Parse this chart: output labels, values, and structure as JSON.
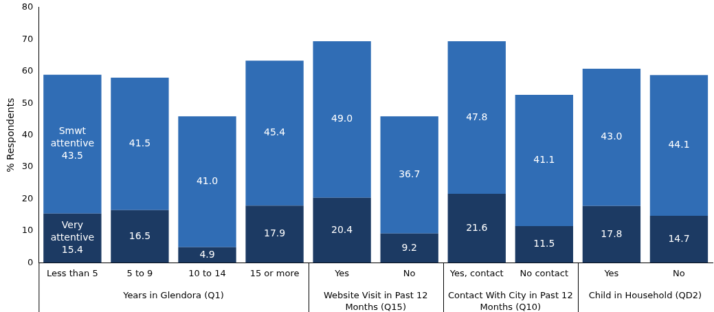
{
  "chart_data": {
    "type": "bar",
    "stacked": true,
    "ylabel": "% Respondents",
    "categories": [
      "Less than 5",
      "5 to 9",
      "10 to 14",
      "15 or more",
      "Yes",
      "No",
      "Yes, contact",
      "No contact",
      "Yes",
      "No"
    ],
    "series": [
      {
        "name": "Very attentive",
        "color": "#1c3a63",
        "values": [
          15.4,
          16.5,
          4.9,
          17.9,
          20.4,
          9.2,
          21.6,
          11.5,
          17.8,
          14.7
        ],
        "value_labels": [
          "15.4",
          "16.5",
          "4.9",
          "17.9",
          "20.4",
          "9.2",
          "21.6",
          "11.5",
          "17.8",
          "14.7"
        ]
      },
      {
        "name": "Smwt attentive",
        "color": "#306db5",
        "values": [
          43.5,
          41.5,
          41,
          45.4,
          49,
          36.7,
          47.8,
          41.1,
          43,
          44.1
        ],
        "value_labels": [
          "43.5",
          "41.5",
          "41.0",
          "45.4",
          "49.0",
          "36.7",
          "47.8",
          "41.1",
          "43.0",
          "44.1"
        ]
      }
    ],
    "ylim": [
      0,
      80
    ],
    "yticks": [
      0,
      10,
      20,
      30,
      40,
      50,
      60,
      70,
      80
    ],
    "grid": false,
    "legend": false,
    "annotations": [
      "Years in Glendora (Q1)",
      "Website Visit in Past 12 Months (Q15)",
      "Contact With City in Past 12 Months (Q10)",
      "Child in Household (QD2)"
    ]
  }
}
